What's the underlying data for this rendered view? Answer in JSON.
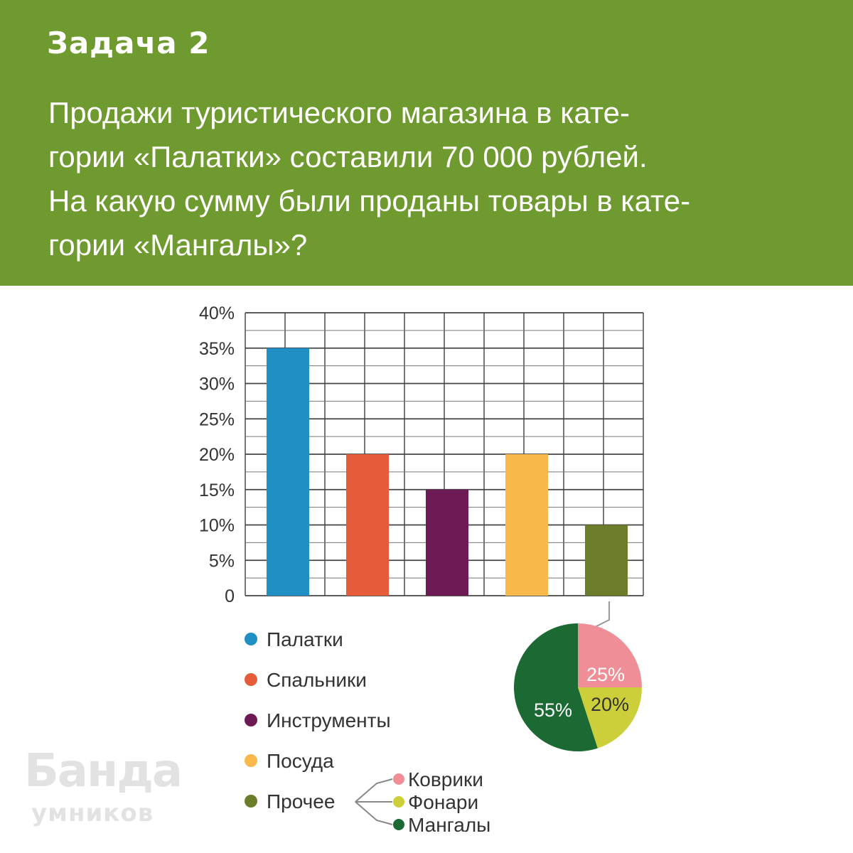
{
  "header": {
    "title": "Задача 2",
    "lines": [
      "Продажи туристического магазина в кате-",
      "гории «Палатки» составили 70 000 рублей.",
      "На какую сумму были проданы товары в кате-",
      "гории «Мангалы»?"
    ]
  },
  "chart_data": [
    {
      "type": "bar",
      "categories": [
        "Палатки",
        "Спальники",
        "Инструменты",
        "Посуда",
        "Прочее"
      ],
      "values": [
        35,
        20,
        15,
        20,
        10
      ],
      "colors": [
        "#1f8fc4",
        "#e45c3a",
        "#6e1a55",
        "#f9b94a",
        "#6b7d2a"
      ],
      "yticks": [
        "0",
        "5%",
        "10%",
        "15%",
        "20%",
        "25%",
        "30%",
        "35%",
        "40%"
      ],
      "ylim": [
        0,
        40
      ],
      "grid": true,
      "legend": [
        "Палатки",
        "Спальники",
        "Инструменты",
        "Посуда",
        "Прочее"
      ]
    },
    {
      "type": "pie",
      "parent": "Прочее",
      "categories": [
        "Коврики",
        "Фонари",
        "Мангалы"
      ],
      "values": [
        25,
        20,
        55
      ],
      "labels": [
        "25%",
        "20%",
        "55%"
      ],
      "colors": [
        "#ef8e96",
        "#cdcf3a",
        "#1b6a33"
      ]
    }
  ],
  "logo": {
    "line1": "Банда",
    "line2": "умников"
  }
}
